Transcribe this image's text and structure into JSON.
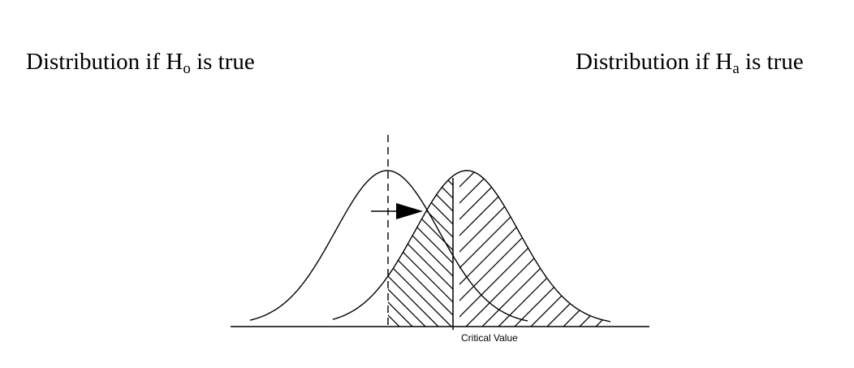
{
  "labels": {
    "h0_prefix": "Distribution if H",
    "h0_sub": "o",
    "h0_suffix": " is true",
    "ha_prefix": "Distribution if H",
    "ha_sub": "a",
    "ha_suffix": " is true",
    "critical_value": "Critical Value"
  },
  "colors": {
    "stroke": "#000000",
    "background": "#ffffff"
  }
}
